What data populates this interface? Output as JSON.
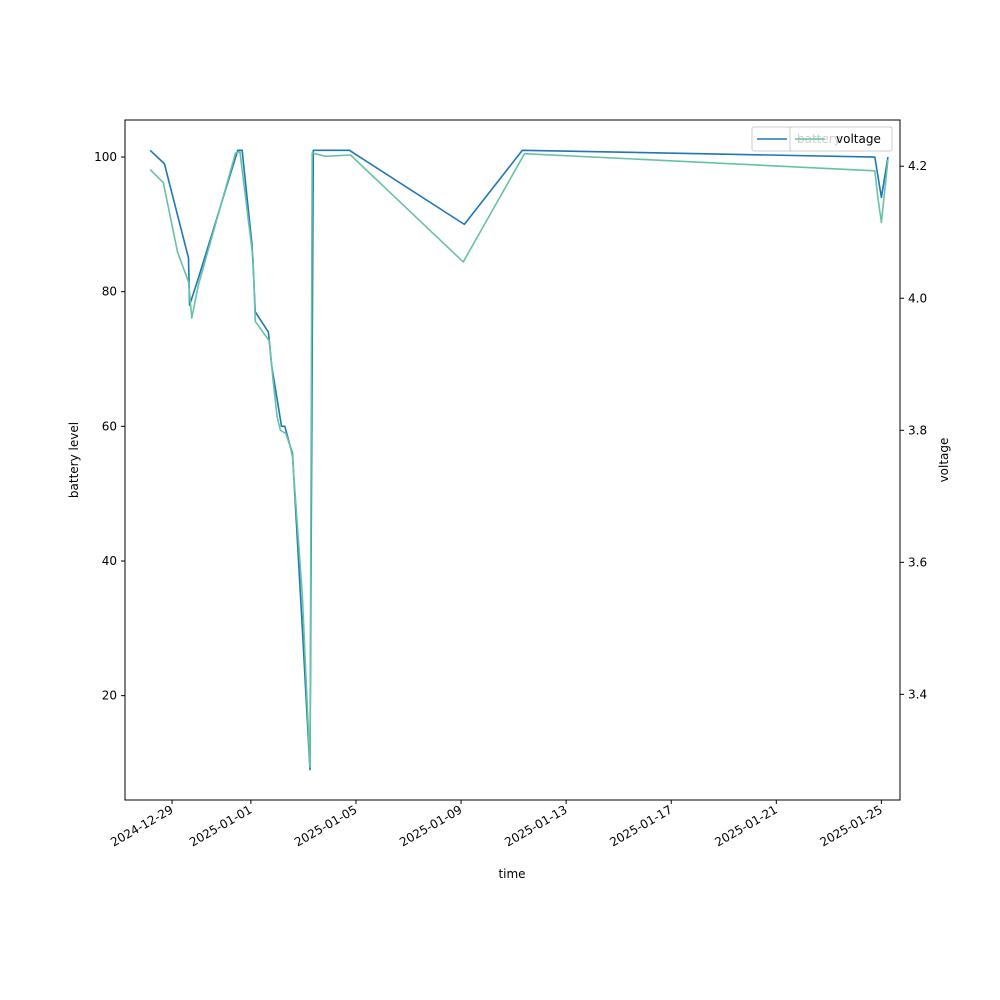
{
  "chart_data": {
    "type": "line",
    "xlabel": "time",
    "ylabel_left": "battery level",
    "ylabel_right": "voltage",
    "x_range": [
      "2024-12-27T05:00",
      "2025-01-25T17:00"
    ],
    "ylim_left": [
      4.5,
      105.5
    ],
    "ylim_right": [
      3.24,
      4.27
    ],
    "left_ticks": [
      20,
      40,
      60,
      80,
      100
    ],
    "right_ticks": [
      3.4,
      3.6,
      3.8,
      4.0,
      4.2
    ],
    "x_ticks": [
      "2024-12-29",
      "2025-01-01",
      "2025-01-05",
      "2025-01-09",
      "2025-01-13",
      "2025-01-17",
      "2025-01-21",
      "2025-01-25"
    ],
    "grid": false,
    "legend_placement": "upper right",
    "series": [
      {
        "name": "battery",
        "axis": "left",
        "color": "#1f77b4",
        "points": [
          [
            "2024-12-28T04:00",
            101
          ],
          [
            "2024-12-28T17:00",
            99
          ],
          [
            "2024-12-29T15:00",
            85
          ],
          [
            "2024-12-29T16:00",
            78
          ],
          [
            "2024-12-30T00:00",
            82
          ],
          [
            "2024-12-31T12:00",
            101
          ],
          [
            "2024-12-31T16:00",
            101
          ],
          [
            "2025-01-01T01:00",
            87
          ],
          [
            "2025-01-01T02:00",
            84
          ],
          [
            "2025-01-01T04:00",
            77
          ],
          [
            "2025-01-01T16:00",
            74
          ],
          [
            "2025-01-01T19:00",
            69
          ],
          [
            "2025-01-02T00:00",
            64
          ],
          [
            "2025-01-02T04:00",
            60
          ],
          [
            "2025-01-02T07:00",
            60
          ],
          [
            "2025-01-02T12:00",
            57
          ],
          [
            "2025-01-02T14:00",
            56
          ],
          [
            "2025-01-02T23:00",
            30
          ],
          [
            "2025-01-03T06:00",
            9
          ],
          [
            "2025-01-03T09:00",
            101
          ],
          [
            "2025-01-03T18:00",
            101
          ],
          [
            "2025-01-04T18:00",
            101
          ],
          [
            "2025-01-09T03:00",
            90
          ],
          [
            "2025-01-11T08:00",
            101
          ],
          [
            "2025-01-24T18:00",
            100
          ],
          [
            "2025-01-24T21:00",
            97
          ],
          [
            "2025-01-25T00:00",
            94
          ],
          [
            "2025-01-25T06:00",
            100
          ]
        ]
      },
      {
        "name": "voltage",
        "axis": "right",
        "color": "#66c2a5",
        "points": [
          [
            "2024-12-28T04:00",
            4.195
          ],
          [
            "2024-12-28T16:00",
            4.175
          ],
          [
            "2024-12-29T05:00",
            4.07
          ],
          [
            "2024-12-29T15:00",
            4.025
          ],
          [
            "2024-12-29T18:00",
            3.97
          ],
          [
            "2024-12-30T00:00",
            4.02
          ],
          [
            "2024-12-31T10:00",
            4.22
          ],
          [
            "2024-12-31T14:00",
            4.222
          ],
          [
            "2025-01-01T02:00",
            4.06
          ],
          [
            "2025-01-01T04:00",
            3.965
          ],
          [
            "2025-01-01T17:00",
            3.935
          ],
          [
            "2025-01-01T20:00",
            3.88
          ],
          [
            "2025-01-02T00:00",
            3.82
          ],
          [
            "2025-01-02T03:00",
            3.8
          ],
          [
            "2025-01-02T08:00",
            3.795
          ],
          [
            "2025-01-02T12:00",
            3.775
          ],
          [
            "2025-01-02T14:00",
            3.76
          ],
          [
            "2025-01-02T23:00",
            3.55
          ],
          [
            "2025-01-03T06:00",
            3.29
          ],
          [
            "2025-01-03T08:00",
            4.22
          ],
          [
            "2025-01-03T20:00",
            4.215
          ],
          [
            "2025-01-04T19:00",
            4.217
          ],
          [
            "2025-01-09T02:00",
            4.055
          ],
          [
            "2025-01-11T10:00",
            4.219
          ],
          [
            "2025-01-24T18:00",
            4.193
          ],
          [
            "2025-01-24T21:00",
            4.15
          ],
          [
            "2025-01-25T00:00",
            4.115
          ],
          [
            "2025-01-25T06:00",
            4.21
          ]
        ]
      }
    ]
  }
}
